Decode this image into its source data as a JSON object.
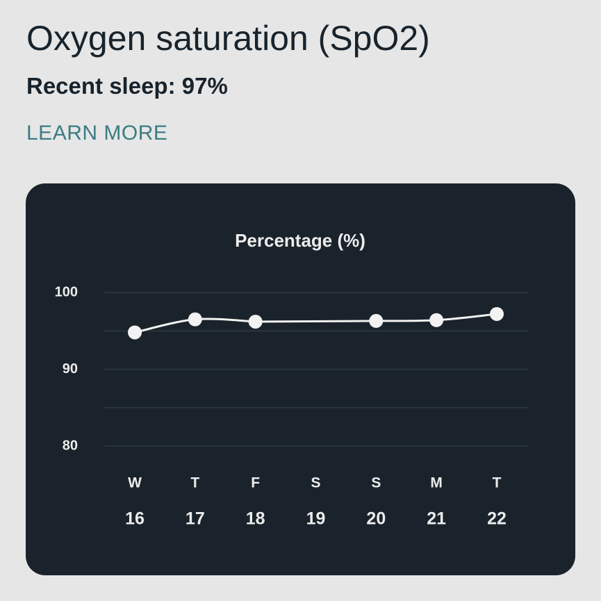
{
  "header": {
    "title": "Oxygen saturation (SpO2)",
    "subtitle": "Recent sleep: 97%",
    "link": "LEARN MORE"
  },
  "chart_data": {
    "type": "line",
    "title": "Percentage (%)",
    "categories": [
      "W",
      "T",
      "F",
      "S",
      "S",
      "M",
      "T"
    ],
    "dates": [
      "16",
      "17",
      "18",
      "19",
      "20",
      "21",
      "22"
    ],
    "values": [
      94.8,
      96.5,
      96.2,
      null,
      96.3,
      96.4,
      97.2
    ],
    "color": "#f2f2f2",
    "ylim": [
      80,
      100
    ],
    "yticks": [
      80,
      90,
      100
    ],
    "minor_yticks": [
      85,
      95
    ],
    "grid": true
  }
}
